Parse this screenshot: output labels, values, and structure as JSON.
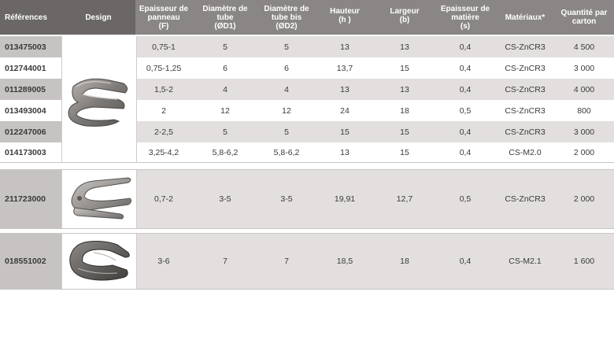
{
  "headers": {
    "ref": "Références",
    "design": "Design",
    "panel": [
      "Epaisseur de",
      "panneau",
      "(F)"
    ],
    "tube": [
      "Diamètre de",
      "tube",
      "(ØD1)"
    ],
    "tube_bis": [
      "Diamètre de",
      "tube bis",
      "(ØD2)"
    ],
    "height": [
      "Hauteur",
      "(h )"
    ],
    "width": [
      "Largeur",
      "(b)"
    ],
    "thickness": [
      "Epaisseur de",
      "matière",
      "(s)"
    ],
    "material": "Matériaux*",
    "qty": [
      "Quantité par",
      "carton"
    ]
  },
  "rows": [
    {
      "ref": "013475003",
      "panel": "0,75-1",
      "tube": "5",
      "tube_bis": "5",
      "height": "13",
      "width": "13",
      "thickness": "0,4",
      "material": "CS-ZnCR3",
      "qty": "4 500"
    },
    {
      "ref": "012744001",
      "panel": "0,75-1,25",
      "tube": "6",
      "tube_bis": "6",
      "height": "13,7",
      "width": "15",
      "thickness": "0,4",
      "material": "CS-ZnCR3",
      "qty": "3 000"
    },
    {
      "ref": "011289005",
      "panel": "1,5-2",
      "tube": "4",
      "tube_bis": "4",
      "height": "13",
      "width": "13",
      "thickness": "0,4",
      "material": "CS-ZnCR3",
      "qty": "4 000"
    },
    {
      "ref": "013493004",
      "panel": "2",
      "tube": "12",
      "tube_bis": "12",
      "height": "24",
      "width": "18",
      "thickness": "0,5",
      "material": "CS-ZnCR3",
      "qty": "800"
    },
    {
      "ref": "012247006",
      "panel": "2-2,5",
      "tube": "5",
      "tube_bis": "5",
      "height": "15",
      "width": "15",
      "thickness": "0,4",
      "material": "CS-ZnCR3",
      "qty": "3 000"
    },
    {
      "ref": "014173003",
      "panel": "3,25-4,2",
      "tube": "5,8-6,2",
      "tube_bis": "5,8-6,2",
      "height": "13",
      "width": "15",
      "thickness": "0,4",
      "material": "CS-M2.0",
      "qty": "2 000"
    },
    {
      "ref": "211723000",
      "panel": "0,7-2",
      "tube": "3-5",
      "tube_bis": "3-5",
      "height": "19,91",
      "width": "12,7",
      "thickness": "0,5",
      "material": "CS-ZnCR3",
      "qty": "2 000"
    },
    {
      "ref": "018551002",
      "panel": "3-6",
      "tube": "7",
      "tube_bis": "7",
      "height": "18,5",
      "width": "18",
      "thickness": "0,4",
      "material": "CS-M2.1",
      "qty": "1 600"
    }
  ]
}
